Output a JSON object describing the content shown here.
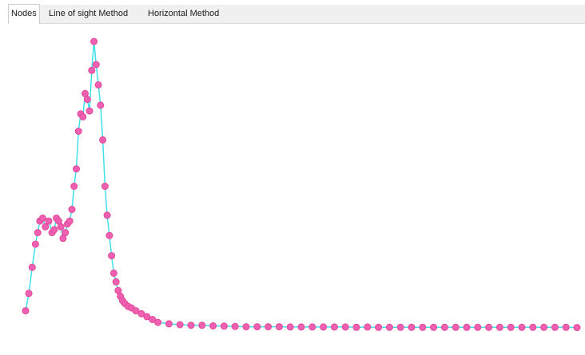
{
  "tabs": [
    {
      "label": "Nodes",
      "active": true
    },
    {
      "label": "Line of sight Method",
      "active": false
    },
    {
      "label": "Horizontal Method",
      "active": false
    }
  ],
  "colors": {
    "line": "#3fe0e8",
    "marker": "#f060b0",
    "marker_stroke": "#e0489c",
    "tab_bar": "#f0f0f0"
  },
  "chart_data": {
    "type": "line",
    "xlabel": "",
    "ylabel": "",
    "grid": false,
    "xlim": [
      0,
      1000
    ],
    "ylim": [
      0,
      1000
    ],
    "series": [
      {
        "x": [
          0,
          6,
          12,
          18,
          22,
          26,
          31,
          36,
          42,
          48,
          52,
          56,
          60,
          64,
          68,
          72,
          76,
          80,
          84,
          88,
          92,
          96,
          100,
          104,
          108,
          112,
          116,
          120,
          124,
          128,
          132,
          136,
          140,
          144,
          148,
          152,
          156,
          160,
          164,
          168,
          172,
          176,
          180,
          186,
          192,
          200,
          210,
          220,
          230,
          240,
          260,
          280,
          300,
          320,
          340,
          360,
          380,
          400,
          420,
          440,
          460,
          480,
          500,
          520,
          540,
          560,
          580,
          600,
          620,
          640,
          660,
          680,
          700,
          720,
          740,
          760,
          780,
          800,
          820,
          840,
          860,
          880,
          900,
          920,
          940,
          960,
          980,
          1000
        ],
        "y": [
          70,
          130,
          220,
          300,
          340,
          380,
          390,
          360,
          380,
          340,
          350,
          390,
          380,
          360,
          320,
          340,
          370,
          380,
          420,
          500,
          560,
          690,
          750,
          740,
          820,
          800,
          760,
          900,
          1000,
          920,
          850,
          780,
          660,
          500,
          400,
          330,
          260,
          200,
          170,
          140,
          120,
          105,
          95,
          85,
          80,
          70,
          60,
          50,
          40,
          30,
          25,
          22,
          20,
          20,
          18,
          17,
          16,
          15,
          15,
          15,
          15,
          14,
          14,
          14,
          14,
          14,
          14,
          13,
          14,
          13,
          13,
          13,
          13,
          13,
          13,
          13,
          13,
          13,
          13,
          13,
          13,
          13,
          13,
          13,
          13,
          13,
          13,
          12
        ]
      }
    ]
  }
}
